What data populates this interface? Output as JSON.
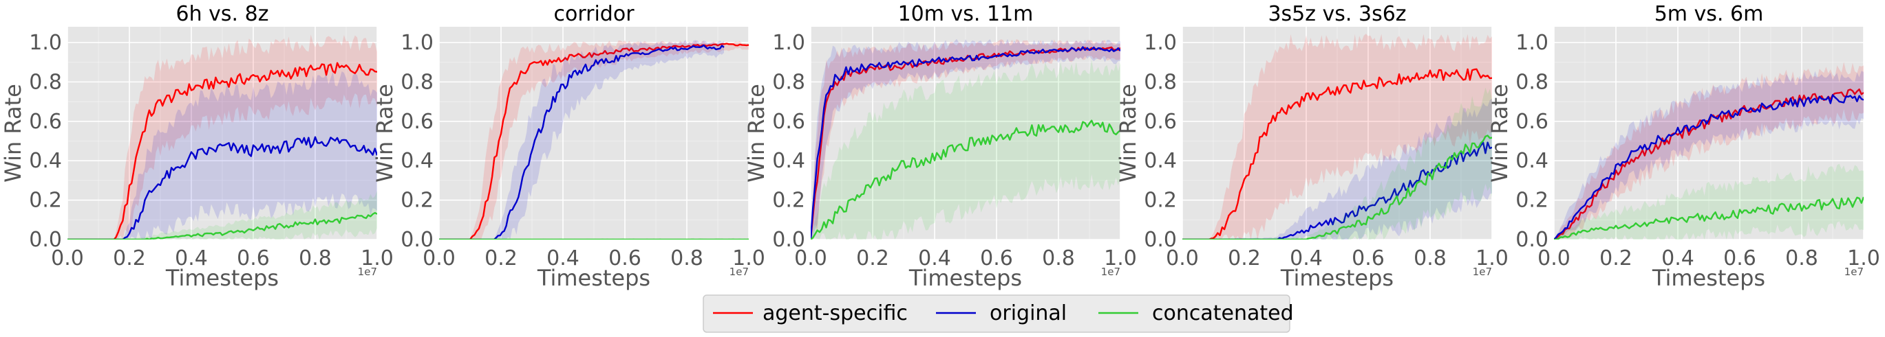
{
  "chart_data": [
    {
      "type": "line",
      "title": "6h vs. 8z",
      "xlabel": "Timesteps",
      "ylabel": "Win Rate",
      "xlim": [
        0,
        10000000
      ],
      "ylim": [
        0,
        1.08
      ],
      "x_exponent_label": "1e7",
      "x_ticks": [
        "0.0",
        "0.2",
        "0.4",
        "0.6",
        "0.8",
        "1.0"
      ],
      "y_ticks": [
        "0.0",
        "0.2",
        "0.4",
        "0.6",
        "0.8",
        "1.0"
      ],
      "grid": true,
      "series": [
        {
          "name": "agent-specific",
          "color": "#ff0000",
          "x": [
            0,
            1500000,
            1700000,
            2000000,
            2300000,
            2600000,
            3000000,
            3500000,
            4000000,
            5000000,
            6000000,
            7000000,
            8000000,
            9000000,
            10000000
          ],
          "y": [
            0,
            0,
            0.05,
            0.25,
            0.48,
            0.62,
            0.7,
            0.73,
            0.77,
            0.8,
            0.82,
            0.84,
            0.86,
            0.87,
            0.86
          ],
          "lower": [
            0,
            0,
            0,
            0.02,
            0.2,
            0.35,
            0.45,
            0.5,
            0.56,
            0.62,
            0.64,
            0.66,
            0.68,
            0.7,
            0.7
          ],
          "upper": [
            0,
            0,
            0.12,
            0.5,
            0.72,
            0.82,
            0.88,
            0.9,
            0.92,
            0.96,
            0.98,
            0.99,
            1.0,
            1.0,
            0.98
          ]
        },
        {
          "name": "original",
          "color": "#0000cc",
          "x": [
            0,
            1800000,
            2000000,
            2300000,
            2600000,
            3000000,
            3500000,
            4000000,
            5000000,
            6000000,
            7000000,
            8000000,
            9000000,
            10000000
          ],
          "y": [
            0,
            0,
            0.03,
            0.12,
            0.22,
            0.3,
            0.35,
            0.42,
            0.47,
            0.45,
            0.47,
            0.5,
            0.5,
            0.44
          ],
          "lower": [
            0,
            0,
            0,
            0,
            0.02,
            0.05,
            0.08,
            0.12,
            0.15,
            0.14,
            0.15,
            0.18,
            0.2,
            0.15
          ],
          "upper": [
            0,
            0,
            0.1,
            0.3,
            0.45,
            0.55,
            0.62,
            0.7,
            0.75,
            0.75,
            0.76,
            0.8,
            0.82,
            0.75
          ]
        },
        {
          "name": "concatenated",
          "color": "#33cc33",
          "x": [
            0,
            2500000,
            3000000,
            4000000,
            5000000,
            6000000,
            7000000,
            8000000,
            9000000,
            10000000
          ],
          "y": [
            0,
            0,
            0.01,
            0.02,
            0.03,
            0.05,
            0.07,
            0.09,
            0.1,
            0.12
          ],
          "lower": [
            0,
            0,
            0,
            0,
            0,
            0,
            0.01,
            0.02,
            0.03,
            0.03
          ],
          "upper": [
            0,
            0.01,
            0.03,
            0.05,
            0.07,
            0.1,
            0.13,
            0.16,
            0.18,
            0.22
          ]
        }
      ]
    },
    {
      "type": "line",
      "title": "corridor",
      "xlabel": "Timesteps",
      "ylabel": "Win Rate",
      "xlim": [
        0,
        10000000
      ],
      "ylim": [
        0,
        1.08
      ],
      "x_exponent_label": "1e7",
      "x_ticks": [
        "0.0",
        "0.2",
        "0.4",
        "0.6",
        "0.8",
        "1.0"
      ],
      "y_ticks": [
        "0.0",
        "0.2",
        "0.4",
        "0.6",
        "0.8",
        "1.0"
      ],
      "grid": true,
      "series": [
        {
          "name": "agent-specific",
          "color": "#ff0000",
          "x": [
            0,
            1000000,
            1300000,
            1600000,
            2000000,
            2300000,
            2600000,
            3000000,
            3500000,
            4000000,
            5000000,
            6000000,
            7000000,
            8000000,
            9000000,
            10000000
          ],
          "y": [
            0,
            0,
            0.05,
            0.25,
            0.55,
            0.75,
            0.83,
            0.88,
            0.9,
            0.92,
            0.94,
            0.96,
            0.97,
            0.98,
            0.99,
            0.99
          ],
          "lower": [
            0,
            0,
            0,
            0.05,
            0.3,
            0.55,
            0.68,
            0.76,
            0.8,
            0.84,
            0.88,
            0.91,
            0.93,
            0.95,
            0.96,
            0.97
          ],
          "upper": [
            0,
            0,
            0.15,
            0.5,
            0.78,
            0.9,
            0.94,
            0.96,
            0.97,
            0.98,
            0.99,
            1.0,
            1.0,
            1.0,
            1.0,
            1.0
          ]
        },
        {
          "name": "original",
          "color": "#0000cc",
          "x": [
            0,
            1800000,
            2100000,
            2500000,
            3000000,
            3500000,
            4000000,
            4500000,
            5000000,
            6000000,
            7000000,
            8000000,
            8500000,
            9000000,
            9200000
          ],
          "y": [
            0,
            0,
            0.05,
            0.2,
            0.45,
            0.65,
            0.78,
            0.85,
            0.89,
            0.93,
            0.96,
            0.97,
            0.98,
            0.97,
            0.98
          ],
          "lower": [
            0,
            0,
            0,
            0.05,
            0.25,
            0.45,
            0.6,
            0.7,
            0.77,
            0.85,
            0.9,
            0.92,
            0.94,
            0.93,
            0.94
          ],
          "upper": [
            0,
            0,
            0.15,
            0.4,
            0.65,
            0.82,
            0.9,
            0.94,
            0.96,
            0.98,
            1.0,
            1.0,
            1.0,
            1.0,
            1.0
          ]
        },
        {
          "name": "concatenated",
          "color": "#33cc33",
          "x": [
            0,
            10000000
          ],
          "y": [
            0,
            0
          ],
          "lower": [
            0,
            0
          ],
          "upper": [
            0,
            0.005
          ]
        }
      ]
    },
    {
      "type": "line",
      "title": "10m vs. 11m",
      "xlabel": "Timesteps",
      "ylabel": "Win Rate",
      "xlim": [
        0,
        10000000
      ],
      "ylim": [
        0,
        1.08
      ],
      "x_exponent_label": "1e7",
      "x_ticks": [
        "0.0",
        "0.2",
        "0.4",
        "0.6",
        "0.8",
        "1.0"
      ],
      "y_ticks": [
        "0.0",
        "0.2",
        "0.4",
        "0.6",
        "0.8",
        "1.0"
      ],
      "grid": true,
      "series": [
        {
          "name": "agent-specific",
          "color": "#ff0000",
          "x": [
            0,
            200000,
            500000,
            800000,
            1200000,
            2000000,
            3000000,
            4000000,
            5000000,
            6000000,
            7000000,
            8000000,
            9000000,
            10000000
          ],
          "y": [
            0,
            0.3,
            0.7,
            0.8,
            0.84,
            0.87,
            0.88,
            0.9,
            0.92,
            0.94,
            0.95,
            0.96,
            0.97,
            0.97
          ],
          "lower": [
            0,
            0.05,
            0.45,
            0.65,
            0.72,
            0.78,
            0.8,
            0.83,
            0.86,
            0.88,
            0.9,
            0.91,
            0.92,
            0.92
          ],
          "upper": [
            0,
            0.55,
            0.88,
            0.93,
            0.95,
            0.96,
            0.97,
            0.98,
            0.99,
            1.0,
            1.0,
            1.0,
            1.0,
            1.0
          ]
        },
        {
          "name": "original",
          "color": "#0000cc",
          "x": [
            0,
            200000,
            500000,
            800000,
            1200000,
            2000000,
            3000000,
            4000000,
            5000000,
            6000000,
            7000000,
            8000000,
            9000000,
            10000000
          ],
          "y": [
            0,
            0.4,
            0.75,
            0.82,
            0.86,
            0.88,
            0.89,
            0.91,
            0.92,
            0.93,
            0.95,
            0.96,
            0.97,
            0.96
          ],
          "lower": [
            0,
            0.1,
            0.5,
            0.66,
            0.74,
            0.79,
            0.82,
            0.84,
            0.86,
            0.88,
            0.9,
            0.91,
            0.92,
            0.9
          ],
          "upper": [
            0,
            0.65,
            0.92,
            0.96,
            0.97,
            0.97,
            0.98,
            0.99,
            1.0,
            1.0,
            1.0,
            1.0,
            1.0,
            1.0
          ]
        },
        {
          "name": "concatenated",
          "color": "#33cc33",
          "x": [
            0,
            500000,
            1000000,
            1500000,
            2000000,
            2500000,
            3000000,
            4000000,
            5000000,
            6000000,
            7000000,
            8000000,
            9000000,
            10000000
          ],
          "y": [
            0,
            0.08,
            0.15,
            0.22,
            0.28,
            0.33,
            0.38,
            0.42,
            0.48,
            0.52,
            0.55,
            0.56,
            0.58,
            0.55
          ],
          "lower": [
            0,
            0,
            0,
            0,
            0,
            0.02,
            0.05,
            0.1,
            0.15,
            0.2,
            0.25,
            0.28,
            0.3,
            0.28
          ],
          "upper": [
            0,
            0.3,
            0.45,
            0.55,
            0.62,
            0.67,
            0.72,
            0.76,
            0.8,
            0.83,
            0.85,
            0.86,
            0.88,
            0.86
          ]
        }
      ]
    },
    {
      "type": "line",
      "title": "3s5z vs. 3s6z",
      "xlabel": "Timesteps",
      "ylabel": "Win Rate",
      "xlim": [
        0,
        10000000
      ],
      "ylim": [
        0,
        1.08
      ],
      "x_exponent_label": "1e7",
      "x_ticks": [
        "0.0",
        "0.2",
        "0.4",
        "0.6",
        "0.8",
        "1.0"
      ],
      "y_ticks": [
        "0.0",
        "0.2",
        "0.4",
        "0.6",
        "0.8",
        "1.0"
      ],
      "grid": true,
      "series": [
        {
          "name": "agent-specific",
          "color": "#ff0000",
          "x": [
            0,
            900000,
            1200000,
            1600000,
            2000000,
            2500000,
            3000000,
            3500000,
            4000000,
            5000000,
            6000000,
            7000000,
            8000000,
            9000000,
            10000000
          ],
          "y": [
            0,
            0,
            0.03,
            0.12,
            0.28,
            0.5,
            0.62,
            0.68,
            0.72,
            0.76,
            0.79,
            0.81,
            0.83,
            0.84,
            0.84
          ],
          "lower": [
            0,
            0,
            0,
            0,
            0,
            0.05,
            0.15,
            0.22,
            0.28,
            0.35,
            0.4,
            0.45,
            0.5,
            0.52,
            0.52
          ],
          "upper": [
            0,
            0,
            0.1,
            0.35,
            0.6,
            0.85,
            0.95,
            1.0,
            1.0,
            1.0,
            1.0,
            1.0,
            1.0,
            1.0,
            1.0
          ]
        },
        {
          "name": "original",
          "color": "#0000cc",
          "x": [
            0,
            3000000,
            3500000,
            4000000,
            5000000,
            6000000,
            7000000,
            8000000,
            9000000,
            10000000
          ],
          "y": [
            0,
            0,
            0.02,
            0.05,
            0.1,
            0.16,
            0.25,
            0.35,
            0.42,
            0.48
          ],
          "lower": [
            0,
            0,
            0,
            0,
            0,
            0.02,
            0.06,
            0.12,
            0.18,
            0.22
          ],
          "upper": [
            0,
            0.01,
            0.06,
            0.14,
            0.24,
            0.34,
            0.44,
            0.55,
            0.62,
            0.7
          ]
        },
        {
          "name": "concatenated",
          "color": "#33cc33",
          "x": [
            0,
            4000000,
            5000000,
            6000000,
            7000000,
            8000000,
            9000000,
            10000000
          ],
          "y": [
            0,
            0,
            0.04,
            0.1,
            0.2,
            0.32,
            0.45,
            0.52
          ],
          "lower": [
            0,
            0,
            0,
            0,
            0.05,
            0.12,
            0.2,
            0.25
          ],
          "upper": [
            0,
            0.01,
            0.1,
            0.2,
            0.35,
            0.5,
            0.65,
            0.75
          ]
        }
      ]
    },
    {
      "type": "line",
      "title": "5m vs. 6m",
      "xlabel": "Timesteps",
      "ylabel": "Win Rate",
      "xlim": [
        0,
        10000000
      ],
      "ylim": [
        0,
        1.08
      ],
      "x_exponent_label": "1e7",
      "x_ticks": [
        "0.0",
        "0.2",
        "0.4",
        "0.6",
        "0.8",
        "1.0"
      ],
      "y_ticks": [
        "0.0",
        "0.2",
        "0.4",
        "0.6",
        "0.8",
        "1.0"
      ],
      "grid": true,
      "series": [
        {
          "name": "agent-specific",
          "color": "#ff0000",
          "x": [
            0,
            500000,
            1000000,
            1500000,
            2000000,
            2500000,
            3000000,
            4000000,
            5000000,
            6000000,
            7000000,
            8000000,
            9000000,
            10000000
          ],
          "y": [
            0,
            0.06,
            0.15,
            0.25,
            0.33,
            0.4,
            0.45,
            0.53,
            0.6,
            0.65,
            0.69,
            0.71,
            0.73,
            0.75
          ],
          "lower": [
            0,
            0.02,
            0.08,
            0.15,
            0.22,
            0.28,
            0.33,
            0.41,
            0.48,
            0.53,
            0.57,
            0.6,
            0.62,
            0.64
          ],
          "upper": [
            0,
            0.12,
            0.25,
            0.37,
            0.46,
            0.54,
            0.6,
            0.68,
            0.75,
            0.79,
            0.82,
            0.84,
            0.86,
            0.88
          ]
        },
        {
          "name": "original",
          "color": "#0000cc",
          "x": [
            0,
            500000,
            1000000,
            1500000,
            2000000,
            2500000,
            3000000,
            4000000,
            5000000,
            6000000,
            7000000,
            8000000,
            9000000,
            10000000
          ],
          "y": [
            0,
            0.08,
            0.18,
            0.28,
            0.36,
            0.43,
            0.48,
            0.55,
            0.61,
            0.65,
            0.68,
            0.7,
            0.71,
            0.72
          ],
          "lower": [
            0,
            0.03,
            0.1,
            0.18,
            0.25,
            0.31,
            0.36,
            0.43,
            0.49,
            0.53,
            0.56,
            0.58,
            0.59,
            0.6
          ],
          "upper": [
            0,
            0.15,
            0.28,
            0.4,
            0.48,
            0.56,
            0.61,
            0.68,
            0.74,
            0.78,
            0.8,
            0.82,
            0.83,
            0.84
          ]
        },
        {
          "name": "concatenated",
          "color": "#33cc33",
          "x": [
            0,
            500000,
            1000000,
            2000000,
            3000000,
            4000000,
            5000000,
            6000000,
            7000000,
            8000000,
            9000000,
            10000000
          ],
          "y": [
            0,
            0.02,
            0.04,
            0.06,
            0.08,
            0.1,
            0.12,
            0.13,
            0.15,
            0.17,
            0.18,
            0.2
          ],
          "lower": [
            0,
            0,
            0,
            0,
            0,
            0,
            0.02,
            0.03,
            0.04,
            0.05,
            0.06,
            0.07
          ],
          "upper": [
            0,
            0.06,
            0.1,
            0.14,
            0.18,
            0.22,
            0.26,
            0.28,
            0.3,
            0.33,
            0.35,
            0.37
          ]
        }
      ]
    }
  ],
  "legend": {
    "position": "bottom-center",
    "entries": [
      {
        "label": "agent-specific",
        "color": "#ff0000"
      },
      {
        "label": "original",
        "color": "#0000cc"
      },
      {
        "label": "concatenated",
        "color": "#33cc33"
      }
    ]
  }
}
